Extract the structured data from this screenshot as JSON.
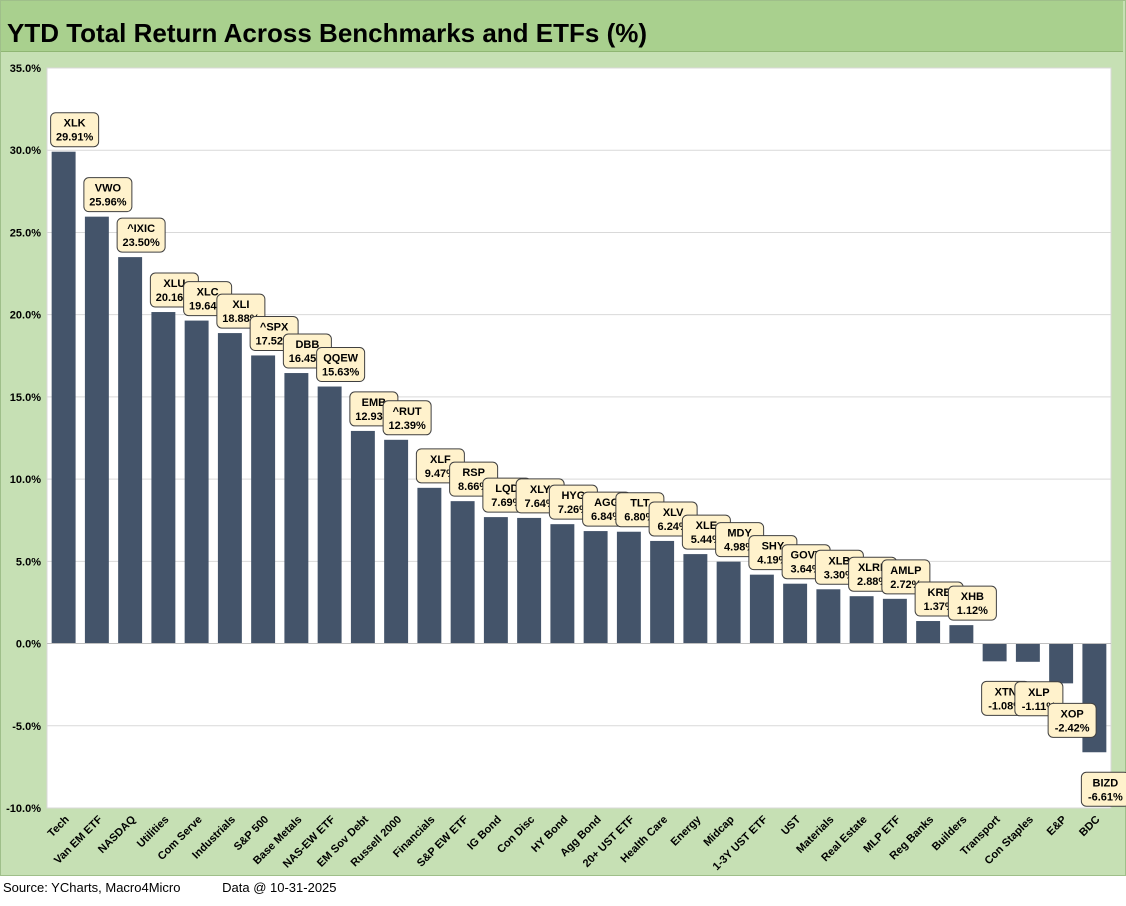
{
  "chart_data": {
    "type": "bar",
    "title": "YTD Total Return Across Benchmarks and ETFs (%)",
    "ylabel": "",
    "xlabel": "",
    "ylim": [
      -10,
      35
    ],
    "yticks": [
      35,
      30,
      25,
      20,
      15,
      10,
      5,
      0,
      -5,
      -10
    ],
    "ytick_labels": [
      "35.0%",
      "30.0%",
      "25.0%",
      "20.0%",
      "15.0%",
      "10.0%",
      "5.0%",
      "0.0%",
      "-5.0%",
      "-10.0%"
    ],
    "bar_color": "#44546a",
    "categories": [
      "Tech",
      "Van EM ETF",
      "NASDAQ",
      "Utilities",
      "Com Serve",
      "Industrials",
      "S&P 500",
      "Base Metals",
      "NAS-EW ETF",
      "EM Sov Debt",
      "Russell 2000",
      "Financials",
      "S&P EW ETF",
      "IG Bond",
      "Con Disc",
      "HY Bond",
      "Agg Bond",
      "20+ UST ETF",
      "Health Care",
      "Energy",
      "Midcap",
      "1-3Y UST ETF",
      "UST",
      "Materials",
      "Real Estate",
      "MLP ETF",
      "Reg Banks",
      "Builders",
      "Transport",
      "Con Staples",
      "E&P",
      "BDC"
    ],
    "tickers": [
      "XLK",
      "VWO",
      "^IXIC",
      "XLU",
      "XLC",
      "XLI",
      "^SPX",
      "DBB",
      "QQEW",
      "EMB",
      "^RUT",
      "XLF",
      "RSP",
      "LQD",
      "XLY",
      "HYG",
      "AGG",
      "TLT",
      "XLV",
      "XLE",
      "MDY",
      "SHY",
      "GOVT",
      "XLB",
      "XLRE",
      "AMLP",
      "KRE",
      "XHB",
      "XTN",
      "XLP",
      "XOP",
      "BIZD"
    ],
    "values": [
      29.91,
      25.96,
      23.5,
      20.16,
      19.64,
      18.88,
      17.52,
      16.45,
      15.63,
      12.93,
      12.39,
      9.47,
      8.66,
      7.69,
      7.64,
      7.26,
      6.84,
      6.8,
      6.24,
      5.44,
      4.98,
      4.19,
      3.64,
      3.3,
      2.88,
      2.72,
      1.37,
      1.12,
      -1.08,
      -1.11,
      -2.42,
      -6.61
    ],
    "value_labels": [
      "29.91%",
      "25.96%",
      "23.50%",
      "20.16%",
      "19.64%",
      "18.88%",
      "17.52%",
      "16.45%",
      "15.63%",
      "12.93%",
      "12.39%",
      "9.47%",
      "8.66%",
      "7.69%",
      "7.64%",
      "7.26%",
      "6.84%",
      "6.80%",
      "6.24%",
      "5.44%",
      "4.98%",
      "4.19%",
      "3.64%",
      "3.30%",
      "2.88%",
      "2.72%",
      "1.37%",
      "1.12%",
      "-1.08%",
      "-1.11%",
      "-2.42%",
      "-6.61%"
    ]
  },
  "footer": {
    "source": "Source: YCharts, Macro4Micro",
    "date": "Data @ 10-31-2025"
  }
}
